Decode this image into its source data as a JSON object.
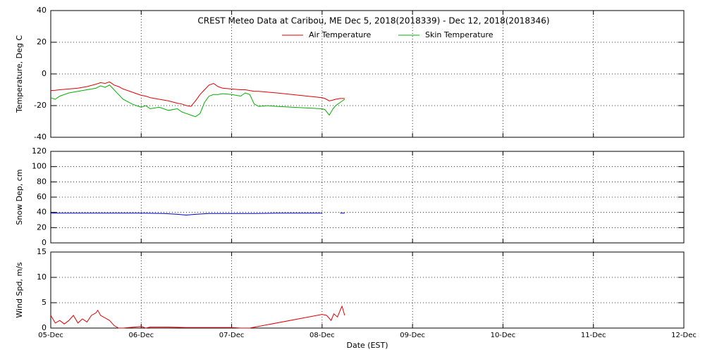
{
  "chart_data": [
    {
      "type": "line",
      "title": "CREST Meteo Data at Caribou, ME   Dec  5, 2018(2018339) - Dec 12, 2018(2018346)",
      "ylabel": "Temperature, Deg C",
      "xlim": [
        0,
        7
      ],
      "xticks": [
        0,
        1,
        2,
        3,
        4,
        5,
        6,
        7
      ],
      "ylim": [
        -40,
        40
      ],
      "yticks": [
        -40,
        -20,
        0,
        20,
        40
      ],
      "grid": true,
      "x": [
        0,
        0.05,
        0.1,
        0.2,
        0.3,
        0.4,
        0.5,
        0.55,
        0.6,
        0.65,
        0.7,
        0.75,
        0.8,
        0.9,
        1.0,
        1.05,
        1.1,
        1.2,
        1.3,
        1.4,
        1.45,
        1.5,
        1.55,
        1.6,
        1.65,
        1.7,
        1.75,
        1.8,
        1.85,
        1.9,
        2.0,
        2.1,
        2.15,
        2.2,
        2.25,
        2.3,
        2.4,
        2.5,
        3.0,
        3.03,
        3.08,
        3.12,
        3.15,
        3.2,
        3.25
      ],
      "series": [
        {
          "name": "Air Temperature",
          "color": "#e00000",
          "values": [
            -10.5,
            -10.3,
            -10,
            -9.5,
            -9,
            -8,
            -6.5,
            -5.5,
            -6,
            -5,
            -7,
            -8,
            -9.5,
            -11.5,
            -13.5,
            -14,
            -15,
            -16,
            -17,
            -18.5,
            -19,
            -20,
            -20.5,
            -17,
            -13,
            -10,
            -7,
            -6,
            -8,
            -9,
            -9.5,
            -10,
            -10,
            -10.5,
            -11,
            -11,
            -11.5,
            -12,
            -15,
            -15.5,
            -17,
            -16.5,
            -16,
            -15.5,
            -15.5
          ]
        },
        {
          "name": "Skin Temperature",
          "color": "#00b000",
          "values": [
            -15,
            -16,
            -14,
            -12,
            -11,
            -10,
            -9,
            -7.5,
            -8.5,
            -7,
            -10,
            -13,
            -16,
            -19,
            -21,
            -20,
            -22,
            -21,
            -23,
            -22,
            -24,
            -25,
            -26,
            -27,
            -25,
            -18,
            -14,
            -13,
            -13,
            -12.5,
            -13,
            -14,
            -12,
            -13,
            -19,
            -20.5,
            -20,
            -20.5,
            -22,
            -22.5,
            -26,
            -22,
            -20,
            -18,
            -16
          ]
        }
      ]
    },
    {
      "type": "line",
      "ylabel": "Snow Dep, cm",
      "xlim": [
        0,
        7
      ],
      "xticks": [
        0,
        1,
        2,
        3,
        4,
        5,
        6,
        7
      ],
      "ylim": [
        0,
        120
      ],
      "yticks": [
        0,
        20,
        40,
        60,
        80,
        100,
        120
      ],
      "grid": true,
      "x": [
        0,
        0.25,
        0.5,
        0.75,
        1.0,
        1.25,
        1.4,
        1.5,
        1.6,
        1.75,
        2.0,
        2.25,
        2.5,
        2.75,
        3.0,
        3.1,
        3.2,
        3.25
      ],
      "series": [
        {
          "color": "#0000c0",
          "values": [
            39,
            39,
            39,
            39,
            39,
            38.5,
            37.5,
            36.5,
            37.5,
            38.5,
            38.5,
            38.5,
            39,
            39,
            39,
            null,
            39,
            39
          ]
        }
      ]
    },
    {
      "type": "line",
      "ylabel": "Wind Spd, m/s",
      "xlabel": "Date (EST)",
      "xlim": [
        0,
        7
      ],
      "xticks": [
        {
          "value": 0,
          "label": "05-Dec"
        },
        {
          "value": 1,
          "label": "06-Dec"
        },
        {
          "value": 2,
          "label": "07-Dec"
        },
        {
          "value": 3,
          "label": "08-Dec"
        },
        {
          "value": 4,
          "label": "09-Dec"
        },
        {
          "value": 5,
          "label": "10-Dec"
        },
        {
          "value": 6,
          "label": "11-Dec"
        },
        {
          "value": 7,
          "label": "12-Dec"
        }
      ],
      "ylim": [
        0,
        15
      ],
      "yticks": [
        0,
        5,
        10,
        15
      ],
      "grid": true,
      "x": [
        0,
        0.05,
        0.1,
        0.15,
        0.2,
        0.25,
        0.3,
        0.35,
        0.4,
        0.45,
        0.5,
        0.52,
        0.55,
        0.6,
        0.65,
        0.7,
        0.75,
        0.8,
        1.0,
        1.05,
        1.1,
        1.3,
        1.5,
        2.0,
        2.1,
        2.2,
        3.0,
        3.05,
        3.1,
        3.13,
        3.17,
        3.2,
        3.22,
        3.25
      ],
      "series": [
        {
          "color": "#e00000",
          "values": [
            2.5,
            1,
            1.5,
            0.8,
            1.5,
            2.5,
            1,
            1.8,
            1.2,
            2.5,
            3,
            3.5,
            2.5,
            2,
            1.5,
            0.5,
            0,
            0,
            0.3,
            0,
            0.2,
            0.2,
            0.1,
            0.1,
            0,
            0,
            2.7,
            2.5,
            1.5,
            2.8,
            2.2,
            3.5,
            4.3,
            2.5
          ]
        }
      ]
    }
  ]
}
